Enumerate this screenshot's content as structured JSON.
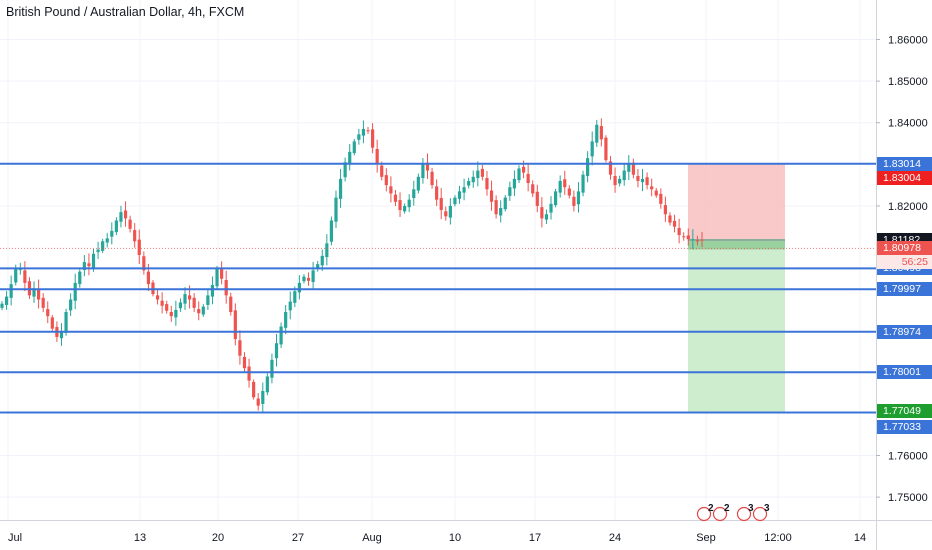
{
  "header": {
    "title": "British Pound / Australian Dollar, 4h, FXCM"
  },
  "colors": {
    "up": "#26a69a",
    "down": "#ef5350",
    "hline": "#3b74d9",
    "price": "#ef5350",
    "last_close_bg": "#131722",
    "timer_bg": "#fde8e8",
    "timer_text": "#ef5350",
    "stop_zone": "#f8c0c0",
    "target_zone": "#c9eac9",
    "target_bg": "#1e9e2e",
    "stop_bg": "#ef2020",
    "axis_text": "#787b86"
  },
  "chart_data": {
    "type": "candlestick",
    "title": "British Pound / Australian Dollar, 4h, FXCM",
    "ylim": [
      1.7445,
      1.8695
    ],
    "y_ticks": [
      "1.86000",
      "1.85000",
      "1.84000",
      "1.82000",
      "1.76000",
      "1.75000"
    ],
    "x_ticks": [
      "Jul",
      "13",
      "20",
      "27",
      "Aug",
      "10",
      "17",
      "24",
      "Sep",
      "12:00",
      "14"
    ],
    "horizontal_levels": [
      1.83014,
      1.80498,
      1.79997,
      1.78974,
      1.78001,
      1.77033
    ],
    "price_labels": [
      {
        "value": 1.83014,
        "text": "1.83014",
        "kind": "level"
      },
      {
        "value": 1.83004,
        "text": "1.83004",
        "kind": "stop"
      },
      {
        "value": 1.81182,
        "text": "1.81182",
        "kind": "last-close"
      },
      {
        "value": 1.80978,
        "text": "1.80978",
        "kind": "current"
      },
      {
        "value": 1.80498,
        "text": "1.80498",
        "kind": "level"
      },
      {
        "value": 1.79997,
        "text": "1.79997",
        "kind": "level"
      },
      {
        "value": 1.78974,
        "text": "1.78974",
        "kind": "level"
      },
      {
        "value": 1.78001,
        "text": "1.78001",
        "kind": "level"
      },
      {
        "value": 1.77049,
        "text": "1.77049",
        "kind": "target"
      },
      {
        "value": 1.77033,
        "text": "1.77033",
        "kind": "level"
      }
    ],
    "countdown": "56:25",
    "current_price": 1.80978,
    "position": {
      "type": "short",
      "entry": 1.81182,
      "stop": 1.83004,
      "target": 1.77049
    },
    "event_markers": [
      "2",
      "2",
      "3",
      "3"
    ],
    "series": [
      {
        "name": "close",
        "values": [
          1.7965,
          1.7982,
          1.8012,
          1.8051,
          1.8048,
          1.8015,
          1.7985,
          1.8002,
          1.7975,
          1.7955,
          1.7935,
          1.7905,
          1.7885,
          1.7898,
          1.7945,
          1.7975,
          1.8015,
          1.8042,
          1.8065,
          1.8055,
          1.8085,
          1.8095,
          1.8115,
          1.8122,
          1.814,
          1.8165,
          1.8185,
          1.817,
          1.8145,
          1.8115,
          1.8082,
          1.8045,
          1.8012,
          1.7988,
          1.7975,
          1.796,
          1.7948,
          1.7935,
          1.795,
          1.7968,
          1.7988,
          1.7975,
          1.7955,
          1.7942,
          1.7958,
          1.7985,
          1.801,
          1.8048,
          1.8025,
          1.7985,
          1.7945,
          1.788,
          1.784,
          1.781,
          1.778,
          1.774,
          1.772,
          1.7755,
          1.779,
          1.783,
          1.787,
          1.791,
          1.7945,
          1.797,
          1.7995,
          1.8015,
          1.803,
          1.802,
          1.8045,
          1.806,
          1.808,
          1.811,
          1.8165,
          1.822,
          1.8265,
          1.8305,
          1.833,
          1.8355,
          1.8372,
          1.8385,
          1.838,
          1.834,
          1.83,
          1.827,
          1.825,
          1.823,
          1.821,
          1.819,
          1.82,
          1.8215,
          1.824,
          1.827,
          1.83,
          1.8285,
          1.825,
          1.8215,
          1.819,
          1.8175,
          1.82,
          1.822,
          1.8235,
          1.8245,
          1.826,
          1.827,
          1.8285,
          1.827,
          1.824,
          1.821,
          1.818,
          1.8195,
          1.822,
          1.8245,
          1.8265,
          1.829,
          1.828,
          1.8255,
          1.823,
          1.82,
          1.817,
          1.818,
          1.8205,
          1.8235,
          1.826,
          1.8245,
          1.8225,
          1.82,
          1.8235,
          1.8275,
          1.8315,
          1.8355,
          1.8395,
          1.836,
          1.831,
          1.8275,
          1.825,
          1.8265,
          1.8285,
          1.83,
          1.8275,
          1.826,
          1.8265,
          1.825,
          1.824,
          1.8225,
          1.8205,
          1.818,
          1.816,
          1.815,
          1.813,
          1.8125,
          1.812,
          1.812,
          1.8115,
          1.8118
        ]
      }
    ]
  }
}
